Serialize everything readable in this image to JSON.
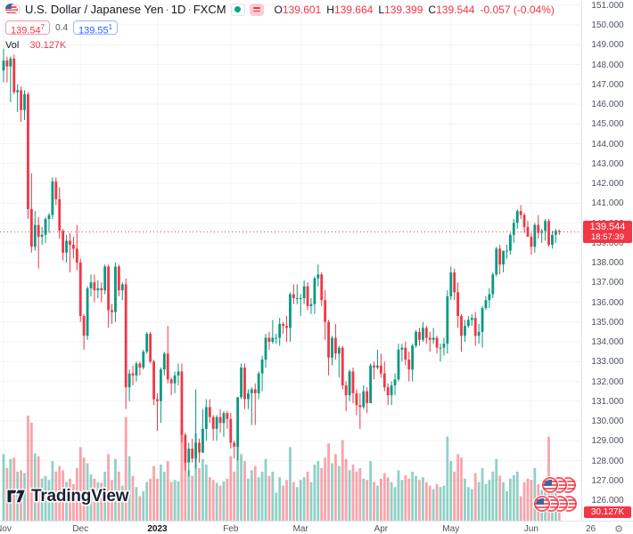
{
  "header": {
    "symbol": "U.S. Dollar / Japanese Yen",
    "sep": "·",
    "interval": "1D",
    "exchange": "FXCM",
    "ohlc": {
      "o_label": "O",
      "o_value": "139.601",
      "h_label": "H",
      "h_value": "139.664",
      "l_label": "L",
      "l_value": "139.399",
      "c_label": "C",
      "c_value": "139.544",
      "change": "-0.057 (-0.04%)"
    },
    "sell_price": "139.54",
    "sell_sup": "7",
    "spread": "0.4",
    "buy_price": "139.55",
    "buy_sup": "1",
    "vol_label": "Vol",
    "vol_value": "30.127K"
  },
  "price_scale": {
    "current_price": "139.544",
    "countdown": "18:57:39",
    "volume_badge": "30.127K"
  },
  "watermark": {
    "brand": "TradingView"
  },
  "time_axis_gear": "⚙",
  "chart_data": {
    "type": "candlestick",
    "title": "U.S. Dollar / Japanese Yen",
    "interval": "1D",
    "exchange": "FXCM",
    "legend_position": "top-left",
    "grid": true,
    "current": {
      "open": 139.601,
      "high": 139.664,
      "low": 139.399,
      "close": 139.544,
      "change": -0.057,
      "change_pct": -0.04,
      "volume_k": 30.127,
      "countdown": "18:57:39"
    },
    "y_ticks": [
      "151.000",
      "150.000",
      "149.000",
      "148.000",
      "147.000",
      "146.000",
      "145.000",
      "144.000",
      "143.000",
      "142.000",
      "141.000",
      "140.000",
      "139.000",
      "138.000",
      "137.000",
      "136.000",
      "135.000",
      "134.000",
      "133.000",
      "132.000",
      "131.000",
      "130.000",
      "129.000",
      "128.000",
      "127.000",
      "126.000"
    ],
    "y_axis": {
      "min_label": 126,
      "max_label": 151,
      "step": 1
    },
    "x_ticks": [
      {
        "label": "Nov",
        "index": 0
      },
      {
        "label": "Dec",
        "index": 22
      },
      {
        "label": "2023",
        "index": 44,
        "bold": true
      },
      {
        "label": "Feb",
        "index": 65
      },
      {
        "label": "Mar",
        "index": 85
      },
      {
        "label": "Apr",
        "index": 108
      },
      {
        "label": "May",
        "index": 128
      },
      {
        "label": "Jun",
        "index": 151
      },
      {
        "label": "26",
        "index": 168
      }
    ],
    "colors": {
      "up": "#089981",
      "down": "#f23645",
      "vol_up": "rgba(8,153,129,0.45)",
      "vol_down": "rgba(242,54,69,0.45)",
      "grid": "rgba(42,46,57,0.055)",
      "axis_text": "#4c525e",
      "last_price_line": "#f23645",
      "badge_bg": "#f23645"
    },
    "candles_format": [
      "open",
      "high",
      "low",
      "close",
      "volume_k"
    ],
    "candles": [
      [
        147.7,
        148.8,
        147.1,
        148.2,
        95
      ],
      [
        148.2,
        148.4,
        147.1,
        147.9,
        75
      ],
      [
        147.9,
        148.4,
        146.1,
        148.3,
        88
      ],
      [
        148.3,
        148.5,
        146.5,
        146.6,
        90
      ],
      [
        146.6,
        147.0,
        145.6,
        146.7,
        70
      ],
      [
        146.7,
        146.9,
        145.1,
        145.7,
        72
      ],
      [
        145.7,
        146.7,
        145.2,
        146.5,
        68
      ],
      [
        146.5,
        146.6,
        140.2,
        140.7,
        150
      ],
      [
        140.7,
        142.5,
        138.5,
        138.8,
        140
      ],
      [
        138.8,
        140.6,
        138.6,
        139.9,
        96
      ],
      [
        139.9,
        140.3,
        137.7,
        139.3,
        92
      ],
      [
        139.3,
        139.8,
        138.9,
        139.4,
        60
      ],
      [
        139.4,
        140.3,
        139.0,
        140.2,
        64
      ],
      [
        140.2,
        140.5,
        139.5,
        140.4,
        58
      ],
      [
        140.4,
        142.3,
        140.2,
        142.1,
        85
      ],
      [
        142.1,
        142.3,
        140.9,
        141.2,
        70
      ],
      [
        141.2,
        141.8,
        139.2,
        139.6,
        78
      ],
      [
        139.6,
        139.7,
        138.1,
        138.5,
        72
      ],
      [
        138.5,
        139.4,
        138.0,
        139.1,
        55
      ],
      [
        139.1,
        139.5,
        137.5,
        138.9,
        60
      ],
      [
        138.9,
        139.3,
        138.2,
        138.7,
        52
      ],
      [
        138.7,
        139.9,
        137.6,
        138.0,
        75
      ],
      [
        138.0,
        138.2,
        135.0,
        135.3,
        105
      ],
      [
        135.3,
        135.4,
        133.6,
        134.3,
        90
      ],
      [
        134.3,
        136.8,
        134.1,
        136.7,
        82
      ],
      [
        136.7,
        137.4,
        136.3,
        137.0,
        66
      ],
      [
        137.0,
        137.4,
        136.0,
        136.6,
        60
      ],
      [
        136.6,
        137.1,
        136.2,
        136.7,
        55
      ],
      [
        136.7,
        137.0,
        136.0,
        136.6,
        54
      ],
      [
        136.6,
        137.9,
        136.4,
        137.8,
        70
      ],
      [
        137.8,
        137.9,
        134.7,
        135.6,
        95
      ],
      [
        135.6,
        135.9,
        134.9,
        135.5,
        58
      ],
      [
        135.5,
        138.0,
        135.0,
        137.8,
        88
      ],
      [
        137.8,
        137.9,
        136.3,
        136.6,
        70
      ],
      [
        136.6,
        137.0,
        136.1,
        136.9,
        50
      ],
      [
        136.9,
        137.2,
        130.6,
        131.7,
        148
      ],
      [
        131.7,
        132.6,
        131.0,
        132.4,
        92
      ],
      [
        132.4,
        132.8,
        131.8,
        132.3,
        64
      ],
      [
        132.3,
        133.0,
        132.0,
        132.9,
        48
      ],
      [
        132.9,
        133.0,
        132.3,
        132.7,
        35
      ],
      [
        132.7,
        133.6,
        132.6,
        133.5,
        42
      ],
      [
        133.5,
        134.5,
        133.4,
        134.4,
        55
      ],
      [
        134.4,
        134.5,
        132.9,
        133.0,
        60
      ],
      [
        133.0,
        133.1,
        130.8,
        131.1,
        78
      ],
      [
        131.1,
        131.4,
        129.5,
        131.0,
        60
      ],
      [
        131.0,
        132.7,
        129.9,
        132.6,
        80
      ],
      [
        132.6,
        133.5,
        132.3,
        133.4,
        70
      ],
      [
        133.4,
        134.8,
        131.9,
        132.1,
        85
      ],
      [
        132.1,
        132.2,
        131.3,
        131.9,
        55
      ],
      [
        131.9,
        132.5,
        131.4,
        132.3,
        58
      ],
      [
        132.3,
        132.9,
        131.8,
        132.5,
        56
      ],
      [
        132.5,
        132.9,
        128.9,
        129.3,
        135
      ],
      [
        129.3,
        129.4,
        127.5,
        127.9,
        110
      ],
      [
        127.9,
        128.9,
        127.2,
        128.6,
        72
      ],
      [
        128.6,
        129.1,
        127.9,
        128.1,
        64
      ],
      [
        128.1,
        131.6,
        127.6,
        128.9,
        125
      ],
      [
        128.9,
        129.1,
        127.9,
        128.4,
        75
      ],
      [
        128.4,
        130.6,
        128.4,
        129.6,
        88
      ],
      [
        129.6,
        131.1,
        129.0,
        130.7,
        80
      ],
      [
        130.7,
        131.1,
        129.9,
        130.2,
        62
      ],
      [
        130.2,
        130.3,
        129.0,
        129.6,
        58
      ],
      [
        129.6,
        130.3,
        129.0,
        130.2,
        54
      ],
      [
        130.2,
        130.6,
        129.4,
        129.9,
        50
      ],
      [
        129.9,
        130.5,
        129.2,
        130.4,
        56
      ],
      [
        130.4,
        130.5,
        129.6,
        130.1,
        60
      ],
      [
        130.1,
        130.4,
        128.6,
        128.9,
        92
      ],
      [
        128.9,
        129.0,
        128.1,
        128.7,
        70
      ],
      [
        128.7,
        131.2,
        128.0,
        131.2,
        118
      ],
      [
        131.2,
        132.9,
        131.1,
        132.7,
        95
      ],
      [
        132.7,
        132.9,
        130.6,
        131.1,
        85
      ],
      [
        131.1,
        131.6,
        130.6,
        131.4,
        60
      ],
      [
        131.4,
        131.7,
        129.8,
        131.6,
        72
      ],
      [
        131.6,
        131.9,
        129.8,
        131.4,
        78
      ],
      [
        131.4,
        132.5,
        131.1,
        132.4,
        62
      ],
      [
        132.4,
        133.3,
        131.5,
        133.1,
        70
      ],
      [
        133.1,
        134.4,
        132.7,
        134.2,
        88
      ],
      [
        134.2,
        134.5,
        133.6,
        134.0,
        64
      ],
      [
        134.0,
        135.1,
        133.9,
        134.2,
        70
      ],
      [
        134.2,
        134.4,
        133.9,
        134.2,
        40
      ],
      [
        134.2,
        135.2,
        133.8,
        134.9,
        62
      ],
      [
        134.9,
        135.0,
        134.4,
        134.8,
        50
      ],
      [
        134.8,
        135.3,
        134.0,
        134.7,
        58
      ],
      [
        134.7,
        136.5,
        134.0,
        136.4,
        105
      ],
      [
        136.4,
        136.9,
        135.9,
        136.2,
        55
      ],
      [
        136.2,
        136.9,
        135.9,
        136.2,
        48
      ],
      [
        136.2,
        136.4,
        135.3,
        136.2,
        58
      ],
      [
        136.2,
        137.1,
        135.9,
        136.8,
        62
      ],
      [
        136.8,
        137.0,
        135.6,
        135.8,
        70
      ],
      [
        135.8,
        136.2,
        135.4,
        135.9,
        55
      ],
      [
        135.9,
        137.3,
        135.4,
        137.2,
        80
      ],
      [
        137.2,
        137.9,
        136.8,
        137.4,
        85
      ],
      [
        137.4,
        137.5,
        135.8,
        136.1,
        75
      ],
      [
        136.1,
        136.6,
        134.1,
        135.0,
        90
      ],
      [
        135.0,
        135.1,
        132.3,
        133.2,
        110
      ],
      [
        133.2,
        134.3,
        132.8,
        134.2,
        82
      ],
      [
        134.2,
        134.9,
        133.1,
        133.4,
        95
      ],
      [
        133.4,
        133.8,
        132.2,
        133.7,
        78
      ],
      [
        133.7,
        133.8,
        131.6,
        131.8,
        115
      ],
      [
        131.8,
        132.0,
        130.5,
        131.3,
        88
      ],
      [
        131.3,
        132.6,
        131.0,
        132.5,
        72
      ],
      [
        132.5,
        132.7,
        130.9,
        131.4,
        80
      ],
      [
        131.4,
        131.6,
        130.3,
        130.8,
        70
      ],
      [
        130.8,
        131.4,
        129.6,
        130.7,
        75
      ],
      [
        130.7,
        131.8,
        130.6,
        131.5,
        60
      ],
      [
        131.5,
        131.7,
        130.4,
        130.9,
        58
      ],
      [
        130.9,
        132.9,
        130.9,
        132.8,
        85
      ],
      [
        132.8,
        133.0,
        132.1,
        132.7,
        55
      ],
      [
        132.7,
        133.6,
        132.6,
        132.8,
        50
      ],
      [
        132.8,
        133.4,
        132.2,
        132.4,
        60
      ],
      [
        132.4,
        133.0,
        131.5,
        131.7,
        68
      ],
      [
        131.7,
        131.9,
        130.8,
        131.3,
        62
      ],
      [
        131.3,
        132.0,
        130.8,
        131.8,
        55
      ],
      [
        131.8,
        132.4,
        131.3,
        132.1,
        48
      ],
      [
        132.1,
        133.9,
        132.0,
        133.6,
        72
      ],
      [
        133.6,
        133.9,
        133.0,
        133.7,
        58
      ],
      [
        133.7,
        134.0,
        132.8,
        133.1,
        65
      ],
      [
        133.1,
        133.5,
        132.0,
        132.6,
        60
      ],
      [
        132.6,
        133.9,
        132.0,
        133.8,
        70
      ],
      [
        133.8,
        134.6,
        133.7,
        134.5,
        64
      ],
      [
        134.5,
        134.7,
        133.8,
        134.1,
        58
      ],
      [
        134.1,
        135.0,
        134.0,
        134.7,
        62
      ],
      [
        134.7,
        134.8,
        133.9,
        134.2,
        55
      ],
      [
        134.2,
        134.5,
        133.5,
        134.1,
        50
      ],
      [
        134.1,
        134.7,
        133.9,
        134.2,
        45
      ],
      [
        134.2,
        134.3,
        133.4,
        133.7,
        52
      ],
      [
        133.7,
        133.9,
        133.0,
        133.7,
        48
      ],
      [
        133.7,
        134.2,
        133.3,
        133.9,
        50
      ],
      [
        133.9,
        136.6,
        133.4,
        136.3,
        120
      ],
      [
        136.3,
        137.8,
        136.1,
        137.5,
        85
      ],
      [
        137.5,
        137.7,
        136.1,
        136.5,
        70
      ],
      [
        136.5,
        137.0,
        134.7,
        135.3,
        95
      ],
      [
        135.3,
        135.4,
        133.5,
        134.3,
        90
      ],
      [
        134.3,
        135.1,
        134.0,
        134.8,
        60
      ],
      [
        134.8,
        135.3,
        134.7,
        135.1,
        48
      ],
      [
        135.1,
        135.4,
        134.8,
        135.2,
        45
      ],
      [
        135.2,
        135.5,
        133.8,
        134.3,
        68
      ],
      [
        134.3,
        134.9,
        133.9,
        134.5,
        55
      ],
      [
        134.5,
        135.8,
        133.7,
        135.7,
        75
      ],
      [
        135.7,
        136.3,
        135.6,
        136.1,
        52
      ],
      [
        136.1,
        136.7,
        135.7,
        136.4,
        58
      ],
      [
        136.4,
        137.5,
        136.2,
        137.4,
        70
      ],
      [
        137.4,
        138.8,
        137.3,
        138.7,
        88
      ],
      [
        138.7,
        138.9,
        137.4,
        137.9,
        64
      ],
      [
        137.9,
        138.6,
        137.5,
        138.6,
        55
      ],
      [
        138.6,
        138.9,
        138.2,
        138.6,
        42
      ],
      [
        138.6,
        139.5,
        138.4,
        139.4,
        60
      ],
      [
        139.4,
        140.2,
        139.0,
        140.0,
        65
      ],
      [
        140.0,
        140.7,
        139.7,
        140.6,
        70
      ],
      [
        140.6,
        140.9,
        140.2,
        140.4,
        35
      ],
      [
        140.4,
        140.5,
        139.5,
        139.8,
        55
      ],
      [
        139.8,
        140.1,
        139.3,
        139.3,
        60
      ],
      [
        139.3,
        139.5,
        138.4,
        138.8,
        58
      ],
      [
        138.8,
        140.0,
        138.5,
        139.9,
        75
      ],
      [
        139.9,
        140.4,
        139.2,
        139.5,
        52
      ],
      [
        139.5,
        139.7,
        139.0,
        139.6,
        44
      ],
      [
        139.6,
        140.2,
        139.1,
        140.1,
        56
      ],
      [
        140.1,
        140.2,
        138.8,
        138.9,
        120
      ],
      [
        138.9,
        139.6,
        138.7,
        139.4,
        48
      ],
      [
        139.4,
        139.7,
        139.0,
        139.6,
        40
      ],
      [
        139.601,
        139.664,
        139.399,
        139.544,
        30.127
      ]
    ]
  }
}
